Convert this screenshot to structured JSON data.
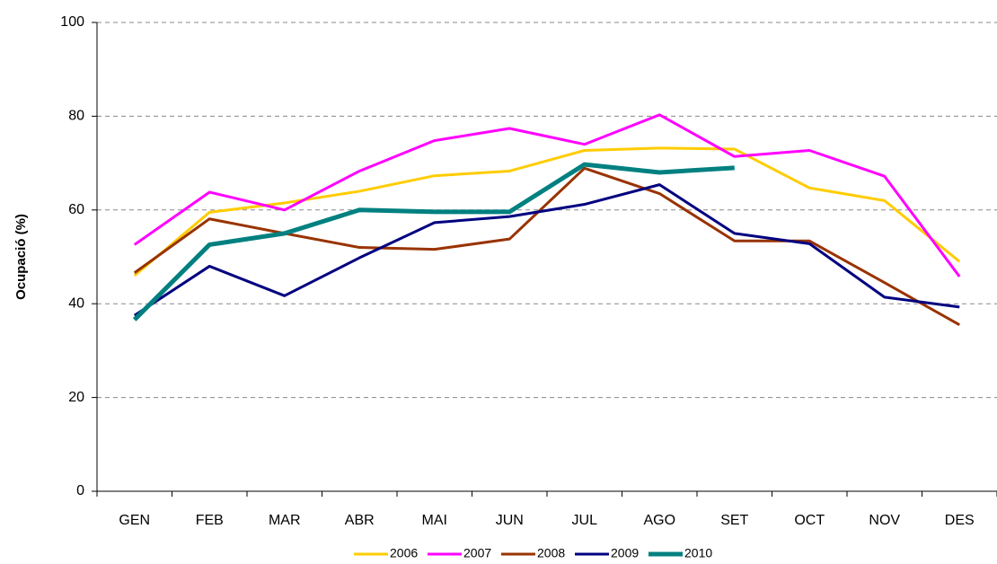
{
  "chart_data": {
    "type": "line",
    "y_label": "Ocupació (%)",
    "categories": [
      "GEN",
      "FEB",
      "MAR",
      "ABR",
      "MAI",
      "JUN",
      "JUL",
      "AGO",
      "SET",
      "OCT",
      "NOV",
      "DES"
    ],
    "series": [
      {
        "name": "2006",
        "color": "#FFCC00",
        "values": [
          46,
          59.5,
          61.5,
          64,
          67.3,
          68.3,
          72.7,
          73.2,
          73,
          64.7,
          62,
          49
        ]
      },
      {
        "name": "2007",
        "color": "#FF00FF",
        "values": [
          52.6,
          63.8,
          60,
          68.3,
          74.8,
          77.4,
          74,
          80.3,
          71.4,
          72.7,
          67.2,
          45.8
        ]
      },
      {
        "name": "2008",
        "color": "#993300",
        "values": [
          46.6,
          58.1,
          55,
          52,
          51.6,
          53.8,
          68.9,
          63.5,
          53.4,
          53.4,
          44.5,
          35.5
        ]
      },
      {
        "name": "2009",
        "color": "#000080",
        "values": [
          37.5,
          48,
          41.7,
          49.8,
          57.3,
          58.6,
          61.2,
          65.4,
          55,
          52.8,
          41.4,
          39.3
        ]
      },
      {
        "name": "2010",
        "color": "#008080",
        "values": [
          36.6,
          52.6,
          55,
          60,
          59.6,
          59.6,
          69.7,
          68,
          69,
          null,
          null,
          null
        ]
      }
    ],
    "ylim": [
      0,
      100
    ],
    "yticks": [
      0,
      20,
      40,
      60,
      80,
      100
    ],
    "grid": true,
    "legend": "bottom"
  }
}
